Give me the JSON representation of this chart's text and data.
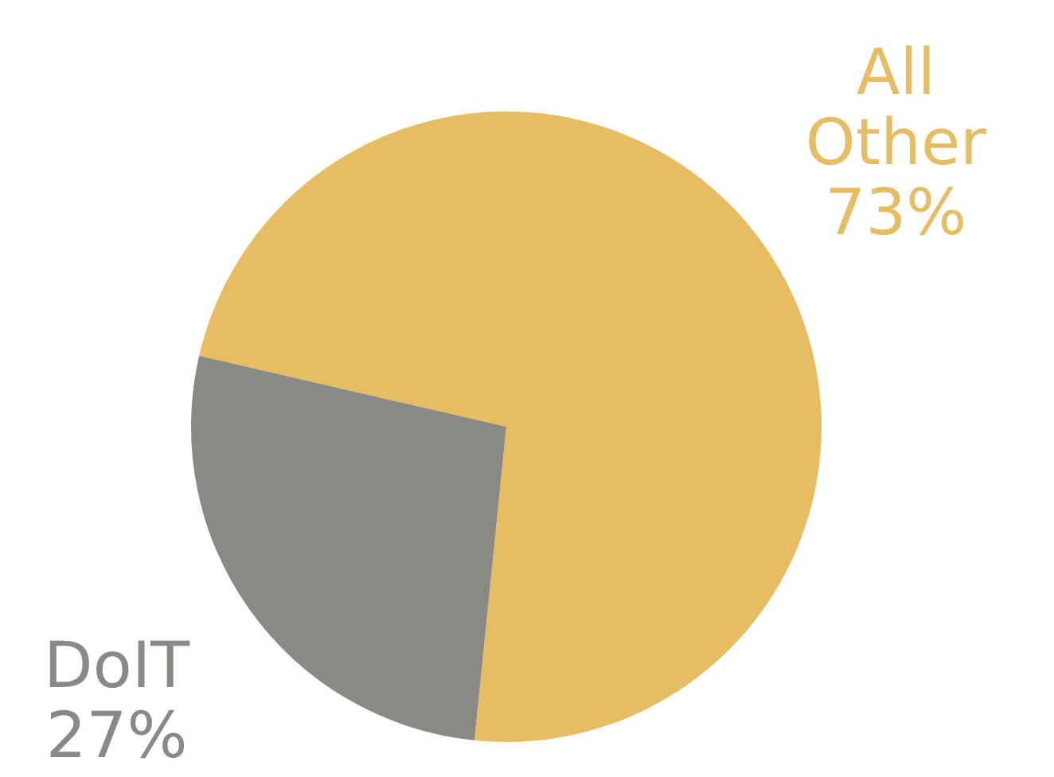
{
  "chart_data": {
    "type": "pie",
    "categories": [
      "All Other",
      "DoIT"
    ],
    "values": [
      73,
      27
    ],
    "colors": [
      "#e6bd62",
      "#8a8a85"
    ],
    "value_labels": [
      "73%",
      "27%"
    ],
    "legend": false
  }
}
